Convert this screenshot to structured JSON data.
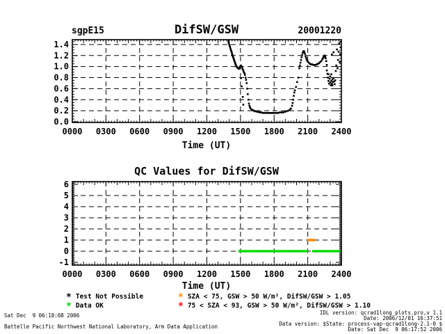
{
  "chart_data": [
    {
      "id": "difsw_gsw",
      "type": "scatter",
      "title": "DifSW/GSW",
      "site_label": "sgpE15",
      "date_label": "20001220",
      "xlabel": "Time (UT)",
      "x_ticks": [
        "0000",
        "0300",
        "0600",
        "0900",
        "1200",
        "1500",
        "1800",
        "2100",
        "2400"
      ],
      "x_tick_hours": [
        0,
        3,
        6,
        9,
        12,
        15,
        18,
        21,
        24
      ],
      "xlim": [
        0,
        24
      ],
      "y_ticks": [
        "0.0",
        "0.2",
        "0.4",
        "0.6",
        "0.8",
        "1.0",
        "1.2",
        "1.4"
      ],
      "y_tick_values": [
        0,
        0.2,
        0.4,
        0.6,
        0.8,
        1.0,
        1.2,
        1.4
      ],
      "ylim": [
        -0.0125,
        1.4875
      ],
      "grid": true,
      "marker": "square",
      "marker_color": "#000000",
      "points": [
        [
          13.92,
          1.46
        ],
        [
          13.95,
          1.43
        ],
        [
          14.0,
          1.4
        ],
        [
          14.03,
          1.38
        ],
        [
          14.06,
          1.36
        ],
        [
          14.1,
          1.33
        ],
        [
          14.13,
          1.31
        ],
        [
          14.16,
          1.29
        ],
        [
          14.2,
          1.27
        ],
        [
          14.23,
          1.25
        ],
        [
          14.26,
          1.22
        ],
        [
          14.3,
          1.2
        ],
        [
          14.33,
          1.18
        ],
        [
          14.36,
          1.16
        ],
        [
          14.4,
          1.14
        ],
        [
          14.43,
          1.12
        ],
        [
          14.46,
          1.1
        ],
        [
          14.5,
          1.08
        ],
        [
          14.53,
          1.06
        ],
        [
          14.56,
          1.04
        ],
        [
          14.6,
          1.02
        ],
        [
          14.65,
          1.0
        ],
        [
          14.7,
          0.99
        ],
        [
          14.75,
          0.98
        ],
        [
          14.8,
          0.97
        ],
        [
          14.85,
          0.96
        ],
        [
          14.9,
          0.97
        ],
        [
          14.95,
          0.99
        ],
        [
          15.0,
          1.01
        ],
        [
          15.05,
          1.02
        ],
        [
          15.1,
          1.0
        ],
        [
          15.15,
          0.98
        ],
        [
          15.05,
          0.79
        ],
        [
          15.1,
          0.64
        ],
        [
          15.2,
          0.95
        ],
        [
          15.25,
          0.93
        ],
        [
          15.3,
          0.9
        ],
        [
          15.2,
          0.45
        ],
        [
          15.25,
          0.31
        ],
        [
          15.35,
          0.88
        ],
        [
          15.4,
          0.85
        ],
        [
          15.45,
          0.8
        ],
        [
          15.5,
          0.76
        ],
        [
          15.55,
          0.7
        ],
        [
          15.6,
          0.6
        ],
        [
          15.65,
          0.5
        ],
        [
          15.7,
          0.4
        ],
        [
          15.75,
          0.33
        ],
        [
          15.8,
          0.29
        ],
        [
          15.85,
          0.26
        ],
        [
          15.9,
          0.24
        ],
        [
          16.0,
          0.22
        ],
        [
          16.1,
          0.21
        ],
        [
          16.2,
          0.2
        ],
        [
          16.3,
          0.19
        ],
        [
          16.4,
          0.19
        ],
        [
          16.5,
          0.18
        ],
        [
          16.6,
          0.18
        ],
        [
          16.7,
          0.17
        ],
        [
          16.8,
          0.17
        ],
        [
          16.9,
          0.17
        ],
        [
          17.0,
          0.16
        ],
        [
          17.15,
          0.16
        ],
        [
          17.3,
          0.16
        ],
        [
          17.45,
          0.16
        ],
        [
          17.6,
          0.16
        ],
        [
          17.75,
          0.16
        ],
        [
          17.9,
          0.16
        ],
        [
          18.05,
          0.16
        ],
        [
          18.2,
          0.16
        ],
        [
          18.35,
          0.16
        ],
        [
          18.5,
          0.17
        ],
        [
          18.65,
          0.17
        ],
        [
          18.8,
          0.17
        ],
        [
          18.95,
          0.18
        ],
        [
          19.1,
          0.19
        ],
        [
          19.25,
          0.2
        ],
        [
          19.4,
          0.22
        ],
        [
          19.5,
          0.24
        ],
        [
          19.6,
          0.29
        ],
        [
          19.65,
          0.34
        ],
        [
          19.7,
          0.4
        ],
        [
          19.75,
          0.47
        ],
        [
          19.8,
          0.53
        ],
        [
          19.85,
          0.57
        ],
        [
          19.95,
          0.63
        ],
        [
          20.05,
          0.72
        ],
        [
          20.15,
          0.8
        ],
        [
          20.25,
          0.97
        ],
        [
          20.3,
          1.02
        ],
        [
          20.35,
          1.07
        ],
        [
          20.4,
          1.12
        ],
        [
          20.45,
          1.17
        ],
        [
          20.5,
          1.21
        ],
        [
          20.55,
          1.25
        ],
        [
          20.6,
          1.27
        ],
        [
          20.65,
          1.28
        ],
        [
          20.7,
          1.26
        ],
        [
          20.75,
          1.23
        ],
        [
          20.8,
          1.19
        ],
        [
          20.85,
          1.16
        ],
        [
          20.9,
          1.13
        ],
        [
          20.95,
          1.11
        ],
        [
          21.0,
          1.09
        ],
        [
          21.1,
          1.07
        ],
        [
          21.2,
          1.05
        ],
        [
          21.3,
          1.04
        ],
        [
          21.4,
          1.04
        ],
        [
          21.5,
          1.03
        ],
        [
          21.6,
          1.03
        ],
        [
          21.7,
          1.03
        ],
        [
          21.8,
          1.04
        ],
        [
          21.9,
          1.05
        ],
        [
          22.0,
          1.06
        ],
        [
          22.1,
          1.08
        ],
        [
          22.2,
          1.1
        ],
        [
          22.3,
          1.13
        ],
        [
          22.35,
          1.15
        ],
        [
          22.4,
          1.17
        ],
        [
          22.45,
          1.19
        ],
        [
          22.5,
          1.2
        ],
        [
          22.55,
          1.18
        ],
        [
          22.6,
          1.15
        ],
        [
          22.65,
          1.1
        ],
        [
          22.7,
          1.03
        ],
        [
          22.7,
          0.93
        ],
        [
          22.75,
          0.87
        ],
        [
          22.8,
          0.8
        ],
        [
          22.85,
          0.74
        ],
        [
          22.85,
          0.86
        ],
        [
          22.9,
          0.69
        ],
        [
          22.95,
          0.78
        ],
        [
          23.0,
          0.71
        ],
        [
          23.0,
          0.82
        ],
        [
          23.05,
          0.66
        ],
        [
          23.1,
          0.74
        ],
        [
          23.1,
          0.86
        ],
        [
          23.15,
          0.69
        ],
        [
          23.2,
          0.77
        ],
        [
          23.2,
          0.66
        ],
        [
          23.25,
          0.72
        ],
        [
          23.3,
          0.79
        ],
        [
          23.35,
          0.73
        ],
        [
          23.4,
          0.68
        ],
        [
          23.45,
          0.75
        ],
        [
          23.15,
          1.22
        ],
        [
          23.3,
          1.26
        ],
        [
          23.5,
          0.92
        ],
        [
          23.55,
          1.02
        ],
        [
          23.6,
          1.31
        ],
        [
          23.65,
          0.97
        ],
        [
          23.7,
          1.12
        ],
        [
          23.75,
          1.27
        ],
        [
          23.8,
          1.42
        ],
        [
          23.85,
          1.08
        ],
        [
          23.9,
          1.22
        ],
        [
          23.92,
          1.45
        ],
        [
          23.95,
          1.35
        ]
      ]
    },
    {
      "id": "qc_values",
      "type": "line",
      "title": "QC Values for DifSW/GSW",
      "xlabel": "Time (UT)",
      "x_ticks": [
        "0000",
        "0300",
        "0600",
        "0900",
        "1200",
        "1500",
        "1800",
        "2100",
        "2400"
      ],
      "x_tick_hours": [
        0,
        3,
        6,
        9,
        12,
        15,
        18,
        21,
        24
      ],
      "xlim": [
        0,
        24
      ],
      "y_ticks": [
        "-1",
        "0",
        "1",
        "2",
        "3",
        "4",
        "5",
        "6"
      ],
      "y_tick_values": [
        -1,
        0,
        1,
        2,
        3,
        4,
        5,
        6
      ],
      "ylim": [
        -1.25,
        6.25
      ],
      "grid": true,
      "segments": [
        {
          "label": "Data OK",
          "color": "#00dd00",
          "y": 0,
          "x_start": 14.82,
          "x_end": 21.02
        },
        {
          "label": "Data OK",
          "color": "#00dd00",
          "y": 0,
          "x_start": 21.38,
          "x_end": 23.91
        },
        {
          "label": "SZA flag",
          "color": "#ff8800",
          "y": 1,
          "x_start": 20.94,
          "x_end": 21.66
        }
      ]
    }
  ],
  "legend": {
    "items": [
      {
        "marker": "*",
        "color": "#000000",
        "label": "Test Not Possible"
      },
      {
        "marker": "*",
        "color": "#00cc00",
        "label": "Data OK"
      },
      {
        "marker": "*",
        "color": "#ff8800",
        "label": "SZA < 75, GSW > 50 W/m², DifSW/GSW > 1.05"
      },
      {
        "marker": "*",
        "color": "#ff0000",
        "label": "75 < SZA < 93, GSW > 50 W/m², DifSW/GSW > 1.10"
      }
    ]
  },
  "footer": {
    "left_line1": "Sat Dec  9 06:18:08 2006",
    "left_line2": "Battelle Pacific Northwest National Laboratory, Arm Data Application",
    "right_line1": "IDL version: qcrad1long_plots.pro,v 1.1",
    "right_line2": "Date: 2006/12/01 16:37:51",
    "right_line3": "Data version: $State: process-vap-qcrad1long-2.1-0 $",
    "right_line4": "Date: Sat Dec  9 06:17:52 2006"
  }
}
